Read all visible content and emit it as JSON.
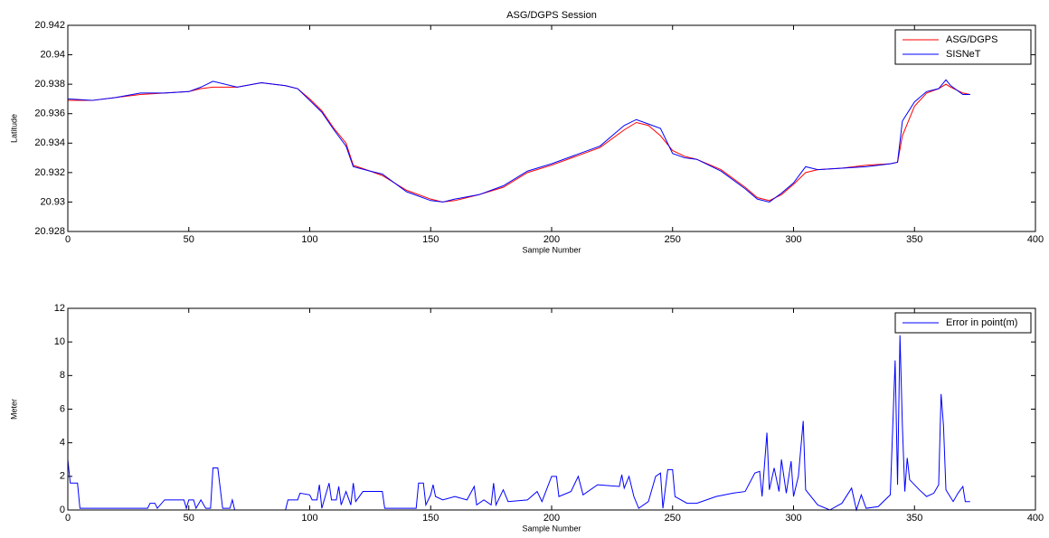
{
  "chart_data": [
    {
      "type": "line",
      "title": "ASG/DGPS Session",
      "xlabel": "Sample Number",
      "ylabel": "Latitude",
      "x": [
        0,
        10,
        20,
        30,
        40,
        50,
        55,
        60,
        70,
        80,
        90,
        95,
        100,
        105,
        110,
        115,
        118,
        125,
        130,
        140,
        150,
        155,
        160,
        170,
        180,
        190,
        200,
        210,
        220,
        230,
        235,
        240,
        245,
        250,
        255,
        260,
        270,
        280,
        285,
        290,
        295,
        300,
        305,
        310,
        320,
        330,
        340,
        343,
        345,
        350,
        355,
        360,
        363,
        365,
        370,
        373
      ],
      "series": [
        {
          "name": "ASG/DGPS",
          "color": "#ff0000",
          "values": [
            20.9369,
            20.9369,
            20.9371,
            20.9373,
            20.9374,
            20.9375,
            20.9377,
            20.9378,
            20.9378,
            20.9381,
            20.9379,
            20.9377,
            20.937,
            20.9362,
            20.935,
            20.934,
            20.9325,
            20.9321,
            20.9318,
            20.9308,
            20.9302,
            20.93,
            20.9301,
            20.9305,
            20.931,
            20.932,
            20.9325,
            20.9331,
            20.9337,
            20.9349,
            20.9354,
            20.9352,
            20.9345,
            20.9335,
            20.9331,
            20.9329,
            20.9322,
            20.931,
            20.9303,
            20.9301,
            20.9305,
            20.9312,
            20.932,
            20.9322,
            20.9323,
            20.9325,
            20.9326,
            20.9327,
            20.9345,
            20.9365,
            20.9374,
            20.9377,
            20.938,
            20.9378,
            20.9374,
            20.9373
          ]
        },
        {
          "name": "SISNeT",
          "color": "#0000ff",
          "values": [
            20.937,
            20.9369,
            20.9371,
            20.9374,
            20.9374,
            20.9375,
            20.9378,
            20.9382,
            20.9378,
            20.9381,
            20.9379,
            20.9377,
            20.9369,
            20.9361,
            20.9349,
            20.9338,
            20.9324,
            20.9321,
            20.9319,
            20.9307,
            20.9301,
            20.93,
            20.9302,
            20.9305,
            20.9311,
            20.9321,
            20.9326,
            20.9332,
            20.9338,
            20.9352,
            20.9356,
            20.9353,
            20.935,
            20.9333,
            20.933,
            20.9329,
            20.9321,
            20.9309,
            20.9302,
            20.93,
            20.9306,
            20.9313,
            20.9324,
            20.9322,
            20.9323,
            20.9324,
            20.9326,
            20.9327,
            20.9355,
            20.9368,
            20.9375,
            20.9377,
            20.9383,
            20.9379,
            20.9373,
            20.9373
          ]
        }
      ],
      "xlim": [
        0,
        400
      ],
      "xticks": [
        0,
        50,
        100,
        150,
        200,
        250,
        300,
        350,
        400
      ],
      "ylim": [
        20.928,
        20.942
      ],
      "yticks": [
        20.928,
        20.93,
        20.932,
        20.934,
        20.936,
        20.938,
        20.94,
        20.942
      ],
      "grid": false,
      "legend": "upper right"
    },
    {
      "type": "line",
      "xlabel": "Sample Number",
      "ylabel": "Meter",
      "x": [
        0,
        1,
        4,
        5,
        33,
        34,
        36,
        37,
        40,
        48,
        49,
        50,
        52,
        53,
        55,
        57,
        59,
        60,
        62,
        64,
        67,
        68,
        69,
        90,
        91,
        95,
        96,
        100,
        101,
        103,
        104,
        105,
        108,
        109,
        111,
        112,
        113,
        115,
        117,
        118,
        119,
        122,
        130,
        131,
        144,
        145,
        147,
        148,
        150,
        151,
        152,
        155,
        160,
        165,
        168,
        169,
        172,
        175,
        176,
        177,
        180,
        182,
        190,
        194,
        196,
        200,
        202,
        203,
        208,
        211,
        213,
        219,
        228,
        229,
        230,
        232,
        234,
        236,
        240,
        243,
        245,
        246,
        248,
        250,
        251,
        256,
        260,
        268,
        275,
        280,
        284,
        286,
        287,
        289,
        290,
        292,
        294,
        295,
        297,
        299,
        300,
        302,
        304,
        305,
        310,
        315,
        320,
        324,
        326,
        328,
        330,
        335,
        340,
        342,
        343,
        344,
        345,
        346,
        347,
        348,
        352,
        355,
        358,
        360,
        361,
        362,
        363,
        366,
        368,
        370,
        371,
        373
      ],
      "series": [
        {
          "name": "Error in point(m)",
          "color": "#0000ff",
          "values": [
            3,
            1.6,
            1.6,
            0.1,
            0.1,
            0.4,
            0.4,
            0.1,
            0.6,
            0.6,
            0.1,
            0.6,
            0.6,
            0.1,
            0.6,
            0.1,
            0.1,
            2.5,
            2.5,
            0.1,
            0.1,
            0.6,
            0,
            0,
            0.6,
            0.6,
            1,
            0.9,
            0.6,
            0.6,
            1.5,
            0.1,
            1.6,
            0.6,
            0.6,
            1.4,
            0.3,
            1.1,
            0.3,
            1.6,
            0.5,
            1.1,
            1.1,
            0.1,
            0.1,
            1.6,
            1.6,
            0.3,
            0.9,
            1.5,
            0.8,
            0.6,
            0.8,
            0.6,
            1.4,
            0.3,
            0.6,
            0.3,
            1.6,
            0.3,
            1.2,
            0.5,
            0.6,
            1.1,
            0.5,
            2,
            2,
            0.8,
            1.1,
            2,
            0.9,
            1.5,
            1.4,
            2.1,
            1.3,
            2,
            0.8,
            0.1,
            0.5,
            2,
            2.2,
            0.1,
            2.4,
            2.4,
            0.8,
            0.4,
            0.4,
            0.8,
            1,
            1.1,
            2.2,
            2.3,
            0.8,
            4.6,
            1.2,
            2.5,
            1.1,
            3,
            1,
            2.9,
            0.8,
            2,
            5.3,
            1.2,
            0.3,
            0,
            0.4,
            1.3,
            0,
            0.9,
            0.1,
            0.2,
            0.9,
            8.9,
            1.5,
            10.4,
            5,
            1.1,
            3.1,
            1.8,
            1.2,
            0.8,
            1,
            1.5,
            6.9,
            5,
            1.2,
            0.5,
            1,
            1.4,
            0.5,
            0.5
          ]
        }
      ],
      "xlim": [
        0,
        400
      ],
      "xticks": [
        0,
        50,
        100,
        150,
        200,
        250,
        300,
        350,
        400
      ],
      "ylim": [
        0,
        12
      ],
      "yticks": [
        0,
        2,
        4,
        6,
        8,
        10,
        12
      ],
      "grid": false,
      "legend": "upper right"
    }
  ]
}
